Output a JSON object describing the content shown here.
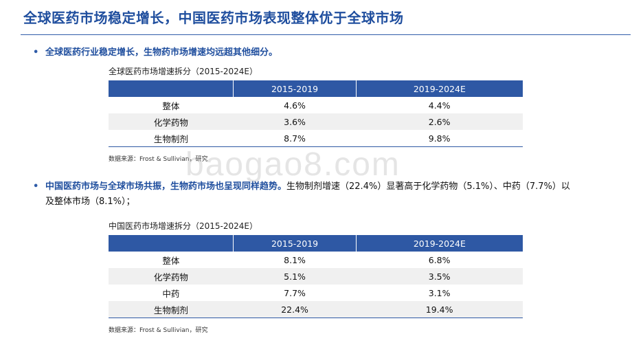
{
  "slide": {
    "title": "全球医药市场稳定增长，中国医药市场表现整体优于全球市场"
  },
  "bullets": {
    "b1": {
      "marker": "•",
      "strong": "全球医药行业稳定增长，生物药市场增速均远超其他细分。",
      "rest": ""
    },
    "b2": {
      "marker": "•",
      "strong": "中国医药市场与全球市场共振，生物药市场也呈现同样趋势。",
      "rest": "生物制剂增速（22.4%）显著高于化学药物（5.1%）、中药（7.7%）以及整体市场（8.1%）；"
    }
  },
  "table_global": {
    "caption": "全球医药市场增速拆分（2015-2024E）",
    "headers": [
      "",
      "2015-2019",
      "2019-2024E"
    ],
    "rows": [
      [
        "整体",
        "4.6%",
        "4.4%"
      ],
      [
        "化学药物",
        "3.6%",
        "2.6%"
      ],
      [
        "生物制剂",
        "8.7%",
        "9.8%"
      ]
    ],
    "source": "数据来源：Frost & Sullivian，研究"
  },
  "table_china": {
    "caption": "中国医药市场增速拆分（2015-2024E）",
    "headers": [
      "",
      "2015-2019",
      "2019-2024E"
    ],
    "rows": [
      [
        "整体",
        "8.1%",
        "6.8%"
      ],
      [
        "化学药物",
        "5.1%",
        "3.5%"
      ],
      [
        "中药",
        "7.7%",
        "3.1%"
      ],
      [
        "生物制剂",
        "22.4%",
        "19.4%"
      ]
    ],
    "source": "数据来源：Frost & Sullivian，研究"
  },
  "watermark": "baogao8.com",
  "colors": {
    "title": "#1f4e9e",
    "header_fill": "#2e58a4",
    "row_stripe": "#f0f0f0"
  }
}
